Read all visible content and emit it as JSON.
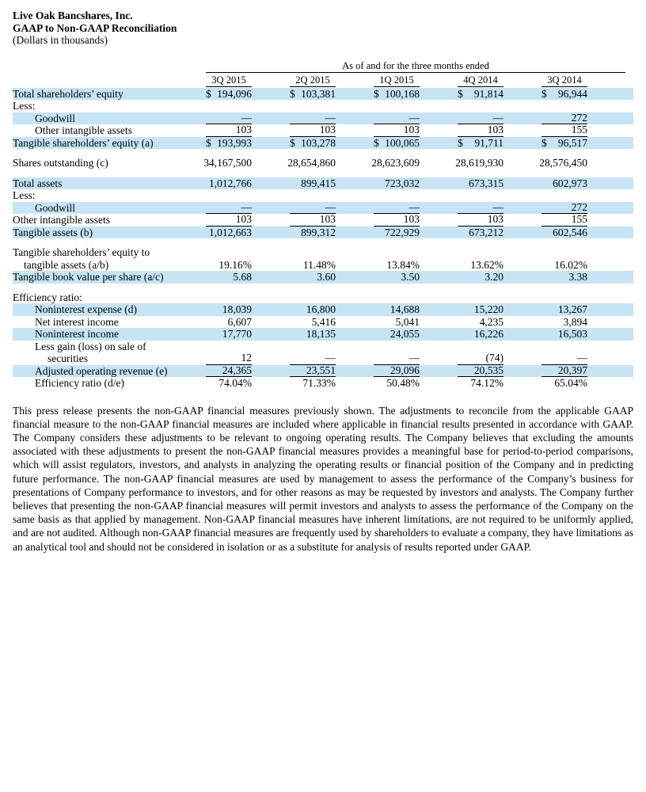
{
  "header": {
    "company": "Live Oak Bancshares, Inc.",
    "title": "GAAP to Non-GAAP Reconciliation",
    "subtitle": "(Dollars in thousands)"
  },
  "table": {
    "span_header": "As of and for the three months ended",
    "columns": [
      "3Q 2015",
      "2Q 2015",
      "1Q 2015",
      "4Q 2014",
      "3Q 2014"
    ],
    "highlight_color": "#c6e4f4",
    "rows": [
      {
        "label": "Total shareholders’ equity",
        "indent": 0,
        "shaded": true,
        "dollar": true,
        "values": [
          "194,096",
          "103,381",
          "100,168",
          "91,814",
          "96,944"
        ]
      },
      {
        "label": "Less:",
        "indent": 0,
        "shaded": false,
        "type": "label"
      },
      {
        "label": "Goodwill",
        "indent": 1,
        "shaded": true,
        "underline": true,
        "values": [
          "—",
          "—",
          "—",
          "—",
          "272"
        ]
      },
      {
        "label": "Other intangible assets",
        "indent": 1,
        "shaded": false,
        "underline": true,
        "values": [
          "103",
          "103",
          "103",
          "103",
          "155"
        ]
      },
      {
        "label": "Tangible shareholders’ equity (a)",
        "indent": 0,
        "shaded": true,
        "dollar": true,
        "values": [
          "193,993",
          "103,278",
          "100,065",
          "91,711",
          "96,517"
        ]
      },
      {
        "type": "spacer"
      },
      {
        "label": "Shares outstanding (c)",
        "indent": 0,
        "shaded": false,
        "values": [
          "34,167,500",
          "28,654,860",
          "28,623,609",
          "28,619,930",
          "28,576,450"
        ]
      },
      {
        "type": "spacer"
      },
      {
        "label": "Total assets",
        "indent": 0,
        "shaded": true,
        "values": [
          "1,012,766",
          "899,415",
          "723,032",
          "673,315",
          "602,973"
        ]
      },
      {
        "label": "Less:",
        "indent": 0,
        "shaded": false,
        "type": "label"
      },
      {
        "label": "Goodwill",
        "indent": 1,
        "shaded": true,
        "underline": true,
        "values": [
          "—",
          "—",
          "—",
          "—",
          "272"
        ]
      },
      {
        "label": "Other intangible assets",
        "indent": 0,
        "shaded": false,
        "underline": true,
        "values": [
          "103",
          "103",
          "103",
          "103",
          "155"
        ]
      },
      {
        "label": "Tangible assets (b)",
        "indent": 0,
        "shaded": true,
        "values": [
          "1,012,663",
          "899,312",
          "722,929",
          "673,212",
          "602,546"
        ]
      },
      {
        "type": "spacer"
      },
      {
        "label": "Tangible shareholders’ equity to",
        "label2": "tangible assets (a/b)",
        "label2_indent": 0.5,
        "indent": 0,
        "shaded": false,
        "values": [
          "19.16%",
          "11.48%",
          "13.84%",
          "13.62%",
          "16.02%"
        ]
      },
      {
        "label": "Tangible book value per share (a/c)",
        "indent": 0,
        "shaded": true,
        "values": [
          "5.68",
          "3.60",
          "3.50",
          "3.20",
          "3.38"
        ]
      },
      {
        "type": "spacer"
      },
      {
        "label": "Efficiency ratio:",
        "indent": 0,
        "shaded": false,
        "type": "label"
      },
      {
        "label": "Noninterest expense (d)",
        "indent": 1,
        "shaded": true,
        "values": [
          "18,039",
          "16,800",
          "14,688",
          "15,220",
          "13,267"
        ]
      },
      {
        "label": "Net interest income",
        "indent": 1,
        "shaded": false,
        "values": [
          "6,607",
          "5,416",
          "5,041",
          "4,235",
          "3,894"
        ]
      },
      {
        "label": "Noninterest income",
        "indent": 1,
        "shaded": true,
        "values": [
          "17,770",
          "18,135",
          "24,055",
          "16,226",
          "16,503"
        ]
      },
      {
        "label": "Less gain (loss) on sale of",
        "label2": "securities",
        "label2_indent": 2,
        "indent": 1,
        "shaded": false,
        "underline": true,
        "values": [
          "12",
          "—",
          "—",
          "(74)",
          "—"
        ]
      },
      {
        "label": "Adjusted operating revenue (e)",
        "indent": 1,
        "shaded": true,
        "underline": true,
        "values": [
          "24,365",
          "23,551",
          "29,096",
          "20,535",
          "20,397"
        ]
      },
      {
        "label": "Efficiency ratio (d/e)",
        "indent": 1,
        "shaded": false,
        "values": [
          "74.04%",
          "71.33%",
          "50.48%",
          "74.12%",
          "65.04%"
        ]
      }
    ]
  },
  "footnote": "This press release presents the non-GAAP financial measures previously shown. The adjustments to reconcile from the applicable GAAP financial measure to the non-GAAP financial measures are included where applicable in financial results presented in accordance with GAAP. The Company considers these adjustments to be relevant to ongoing operating results. The Company believes that excluding the amounts associated with these adjustments to present the non-GAAP financial measures provides a meaningful base for period-to-period comparisons, which will assist regulators, investors, and analysts in analyzing the operating results or financial position of the Company and in predicting future performance. The non-GAAP financial measures are used by management to assess the performance of the Company’s business for presentations of Company performance to investors, and for other reasons as may be requested by investors and analysts. The Company further believes that presenting the non-GAAP financial measures will permit investors and analysts to assess the performance of the Company on the same basis as that applied by management. Non-GAAP financial measures have inherent limitations, are not required to be uniformly applied, and are not audited. Although non-GAAP financial measures are frequently used by shareholders to evaluate a company, they have limitations as an analytical tool and should not be considered in isolation or as a substitute for analysis of results reported under GAAP."
}
